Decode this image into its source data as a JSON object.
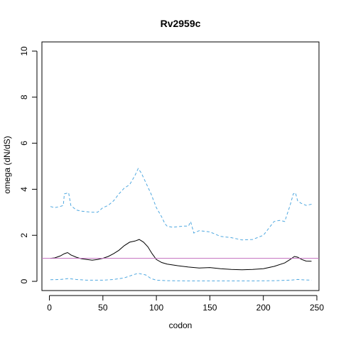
{
  "chart_data": {
    "type": "line",
    "title": "Rv2959c",
    "xlabel": "codon",
    "ylabel": "omega (dN/dS)",
    "xlim": [
      -7,
      252
    ],
    "ylim": [
      -0.4,
      10.4
    ],
    "x_ticks": [
      0,
      50,
      100,
      150,
      200,
      250
    ],
    "y_ticks": [
      0,
      2,
      4,
      6,
      8,
      10
    ],
    "x_tick_labels": [
      "0",
      "50",
      "100",
      "150",
      "200",
      "250"
    ],
    "y_tick_labels": [
      "0",
      "2",
      "4",
      "6",
      "8",
      "10"
    ],
    "grid": false,
    "legend": "none",
    "reference_line": {
      "y": 1.0,
      "color": "#c26fbf"
    },
    "series": [
      {
        "role": "estimate",
        "color": "#000000",
        "dash": "solid",
        "x": [
          1,
          5,
          10,
          14,
          17,
          20,
          25,
          30,
          35,
          40,
          45,
          50,
          55,
          60,
          65,
          70,
          75,
          80,
          84,
          88,
          92,
          96,
          100,
          105,
          110,
          120,
          130,
          140,
          150,
          160,
          170,
          180,
          190,
          200,
          210,
          220,
          225,
          229,
          232,
          236,
          240,
          245
        ],
        "y": [
          1.0,
          1.02,
          1.1,
          1.2,
          1.25,
          1.15,
          1.05,
          0.98,
          0.95,
          0.92,
          0.95,
          1.0,
          1.08,
          1.2,
          1.35,
          1.55,
          1.7,
          1.75,
          1.82,
          1.7,
          1.5,
          1.2,
          0.95,
          0.82,
          0.75,
          0.68,
          0.62,
          0.58,
          0.6,
          0.55,
          0.52,
          0.5,
          0.52,
          0.55,
          0.65,
          0.8,
          0.95,
          1.08,
          1.05,
          0.95,
          0.88,
          0.87
        ]
      },
      {
        "role": "upper-bound",
        "color": "#4fa8e0",
        "dash": "dashed",
        "x": [
          1,
          5,
          10,
          13,
          14,
          18,
          20,
          25,
          30,
          40,
          45,
          50,
          55,
          60,
          65,
          70,
          75,
          80,
          83,
          86,
          90,
          95,
          100,
          105,
          108,
          110,
          115,
          125,
          130,
          132,
          135,
          140,
          150,
          160,
          170,
          180,
          190,
          200,
          205,
          210,
          215,
          220,
          225,
          228,
          230,
          232,
          235,
          240,
          245
        ],
        "y": [
          3.25,
          3.2,
          3.25,
          3.3,
          3.8,
          3.85,
          3.3,
          3.1,
          3.05,
          3.0,
          3.0,
          3.2,
          3.3,
          3.5,
          3.8,
          4.05,
          4.2,
          4.6,
          4.9,
          4.7,
          4.3,
          3.8,
          3.2,
          2.8,
          2.5,
          2.4,
          2.35,
          2.4,
          2.4,
          2.6,
          2.1,
          2.2,
          2.15,
          1.95,
          1.9,
          1.8,
          1.82,
          2.0,
          2.3,
          2.6,
          2.65,
          2.6,
          3.3,
          3.8,
          3.85,
          3.5,
          3.4,
          3.3,
          3.35
        ]
      },
      {
        "role": "lower-bound",
        "color": "#4fa8e0",
        "dash": "dashed",
        "x": [
          1,
          10,
          14,
          18,
          25,
          35,
          50,
          60,
          70,
          78,
          83,
          86,
          90,
          95,
          100,
          110,
          130,
          150,
          170,
          190,
          210,
          225,
          232,
          240,
          245
        ],
        "y": [
          0.07,
          0.08,
          0.1,
          0.12,
          0.08,
          0.05,
          0.05,
          0.08,
          0.15,
          0.28,
          0.35,
          0.32,
          0.28,
          0.12,
          0.05,
          0.03,
          0.02,
          0.02,
          0.02,
          0.02,
          0.03,
          0.05,
          0.08,
          0.06,
          0.05
        ]
      }
    ]
  }
}
